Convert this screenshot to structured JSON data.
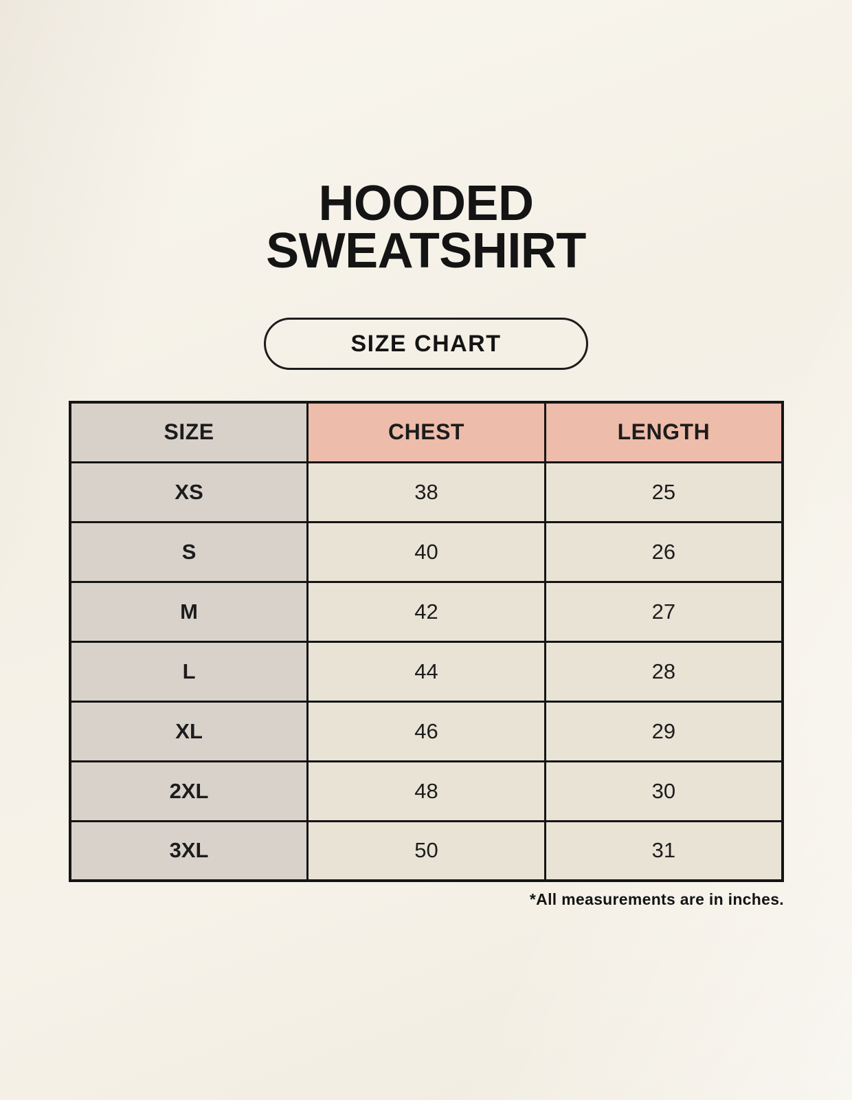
{
  "page": {
    "title_line1": "HOODED",
    "title_line2": "SWEATSHIRT",
    "badge_label": "SIZE CHART",
    "footnote": "*All measurements are in inches."
  },
  "table": {
    "headers": [
      "SIZE",
      "CHEST",
      "LENGTH"
    ],
    "rows": [
      {
        "size": "XS",
        "chest": "38",
        "length": "25"
      },
      {
        "size": "S",
        "chest": "40",
        "length": "26"
      },
      {
        "size": "M",
        "chest": "42",
        "length": "27"
      },
      {
        "size": "L",
        "chest": "44",
        "length": "28"
      },
      {
        "size": "XL",
        "chest": "46",
        "length": "29"
      },
      {
        "size": "2XL",
        "chest": "48",
        "length": "30"
      },
      {
        "size": "3XL",
        "chest": "50",
        "length": "31"
      }
    ]
  },
  "colors": {
    "background": "#f5f1e8",
    "header_label_bg": "#d8d1ca",
    "header_accent_bg": "#eebcaa",
    "size_column_bg": "#d9d2cb",
    "value_cell_bg": "#e9e3d6",
    "table_border": "#151515",
    "text": "#1c1c1c"
  },
  "chart_data": {
    "type": "table",
    "title": "HOODED SWEATSHIRT",
    "subtitle": "SIZE CHART",
    "columns": [
      "SIZE",
      "CHEST",
      "LENGTH"
    ],
    "rows": [
      [
        "XS",
        38,
        25
      ],
      [
        "S",
        40,
        26
      ],
      [
        "M",
        42,
        27
      ],
      [
        "L",
        44,
        28
      ],
      [
        "XL",
        46,
        29
      ],
      [
        "2XL",
        48,
        30
      ],
      [
        "3XL",
        50,
        31
      ]
    ],
    "footnote": "*All measurements are in inches.",
    "units": "inches"
  }
}
